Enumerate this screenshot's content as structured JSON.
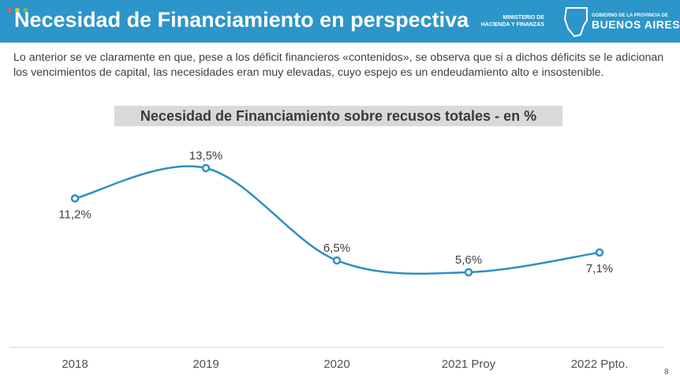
{
  "header": {
    "title": "Necesidad de Financiamiento en perspectiva",
    "ministry_line1": "MINISTERIO DE",
    "ministry_line2": "HACIENDA Y FINANZAS",
    "province_small": "GOBIERNO DE LA PROVINCIA DE",
    "province_big": "BUENOS AIRES"
  },
  "body_text": "Lo anterior se ve claramente en que, pese a los déficit financieros «contenidos», se observa que si a dichos déficits se le adicionan los vencimientos de capital, las necesidades eran muy elevadas, cuyo espejo es un endeudamiento alto e insostenible.",
  "slide_number": "8",
  "colors": {
    "header_bg": "#2c95c9",
    "line": "#2f8fbf",
    "title_bg": "#d9d9d9"
  },
  "chart_data": {
    "type": "line",
    "title": "Necesidad de Financiamiento sobre recusos totales  - en %",
    "categories": [
      "2018",
      "2019",
      "2020",
      "2021 Proy",
      "2022 Ppto."
    ],
    "values": [
      11.2,
      13.5,
      6.5,
      5.6,
      7.1
    ],
    "data_labels": [
      "11,2%",
      "13,5%",
      "6,5%",
      "5,6%",
      "7,1%"
    ],
    "xlabel": "",
    "ylabel": "",
    "grid": false,
    "legend": "none",
    "smooth": true
  }
}
